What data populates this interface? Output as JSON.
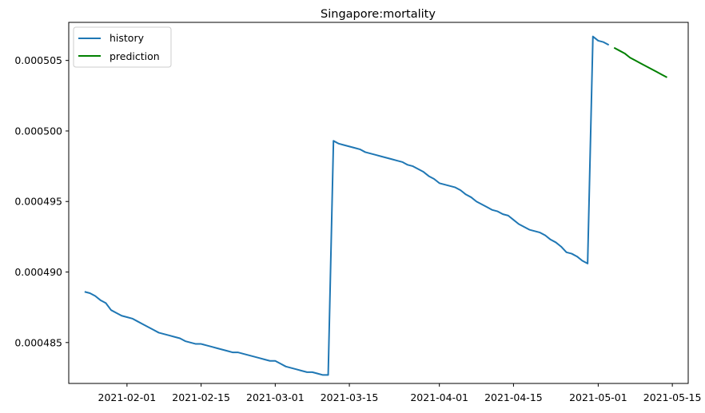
{
  "chart_data": {
    "type": "line",
    "title": "Singapore:mortality",
    "xlabel": "",
    "ylabel": "",
    "xlim": [
      "2021-01-21",
      "2021-05-18"
    ],
    "ylim": [
      0.0004821,
      0.0005077
    ],
    "grid": false,
    "legend_position": "top-left",
    "x_ticks": [
      "2021-02-01",
      "2021-02-15",
      "2021-03-01",
      "2021-03-15",
      "2021-04-01",
      "2021-04-15",
      "2021-05-01",
      "2021-05-15"
    ],
    "y_ticks": [
      0.000485,
      0.00049,
      0.000495,
      0.0005,
      0.000505
    ],
    "y_tick_labels": [
      "0.000485",
      "0.000490",
      "0.000495",
      "0.000500",
      "0.000505"
    ],
    "series": [
      {
        "name": "history",
        "color": "#1f77b4",
        "points": [
          [
            "2021-01-24",
            0.0004886
          ],
          [
            "2021-01-25",
            0.0004885
          ],
          [
            "2021-01-26",
            0.0004883
          ],
          [
            "2021-01-27",
            0.000488
          ],
          [
            "2021-01-28",
            0.0004878
          ],
          [
            "2021-01-29",
            0.0004873
          ],
          [
            "2021-01-30",
            0.0004871
          ],
          [
            "2021-01-31",
            0.0004869
          ],
          [
            "2021-02-01",
            0.0004868
          ],
          [
            "2021-02-02",
            0.0004867
          ],
          [
            "2021-02-03",
            0.0004865
          ],
          [
            "2021-02-04",
            0.0004863
          ],
          [
            "2021-02-05",
            0.0004861
          ],
          [
            "2021-02-06",
            0.0004859
          ],
          [
            "2021-02-07",
            0.0004857
          ],
          [
            "2021-02-08",
            0.0004856
          ],
          [
            "2021-02-09",
            0.0004855
          ],
          [
            "2021-02-10",
            0.0004854
          ],
          [
            "2021-02-11",
            0.0004853
          ],
          [
            "2021-02-12",
            0.0004851
          ],
          [
            "2021-02-13",
            0.000485
          ],
          [
            "2021-02-14",
            0.0004849
          ],
          [
            "2021-02-15",
            0.0004849
          ],
          [
            "2021-02-16",
            0.0004848
          ],
          [
            "2021-02-17",
            0.0004847
          ],
          [
            "2021-02-18",
            0.0004846
          ],
          [
            "2021-02-19",
            0.0004845
          ],
          [
            "2021-02-20",
            0.0004844
          ],
          [
            "2021-02-21",
            0.0004843
          ],
          [
            "2021-02-22",
            0.0004843
          ],
          [
            "2021-02-23",
            0.0004842
          ],
          [
            "2021-02-24",
            0.0004841
          ],
          [
            "2021-02-25",
            0.000484
          ],
          [
            "2021-02-26",
            0.0004839
          ],
          [
            "2021-02-27",
            0.0004838
          ],
          [
            "2021-02-28",
            0.0004837
          ],
          [
            "2021-03-01",
            0.0004837
          ],
          [
            "2021-03-02",
            0.0004835
          ],
          [
            "2021-03-03",
            0.0004833
          ],
          [
            "2021-03-04",
            0.0004832
          ],
          [
            "2021-03-05",
            0.0004831
          ],
          [
            "2021-03-06",
            0.000483
          ],
          [
            "2021-03-07",
            0.0004829
          ],
          [
            "2021-03-08",
            0.0004829
          ],
          [
            "2021-03-09",
            0.0004828
          ],
          [
            "2021-03-10",
            0.0004827
          ],
          [
            "2021-03-11",
            0.0004827
          ],
          [
            "2021-03-12",
            0.0004993
          ],
          [
            "2021-03-13",
            0.0004991
          ],
          [
            "2021-03-14",
            0.000499
          ],
          [
            "2021-03-15",
            0.0004989
          ],
          [
            "2021-03-16",
            0.0004988
          ],
          [
            "2021-03-17",
            0.0004987
          ],
          [
            "2021-03-18",
            0.0004985
          ],
          [
            "2021-03-19",
            0.0004984
          ],
          [
            "2021-03-20",
            0.0004983
          ],
          [
            "2021-03-21",
            0.0004982
          ],
          [
            "2021-03-22",
            0.0004981
          ],
          [
            "2021-03-23",
            0.000498
          ],
          [
            "2021-03-24",
            0.0004979
          ],
          [
            "2021-03-25",
            0.0004978
          ],
          [
            "2021-03-26",
            0.0004976
          ],
          [
            "2021-03-27",
            0.0004975
          ],
          [
            "2021-03-28",
            0.0004973
          ],
          [
            "2021-03-29",
            0.0004971
          ],
          [
            "2021-03-30",
            0.0004968
          ],
          [
            "2021-03-31",
            0.0004966
          ],
          [
            "2021-04-01",
            0.0004963
          ],
          [
            "2021-04-02",
            0.0004962
          ],
          [
            "2021-04-03",
            0.0004961
          ],
          [
            "2021-04-04",
            0.000496
          ],
          [
            "2021-04-05",
            0.0004958
          ],
          [
            "2021-04-06",
            0.0004955
          ],
          [
            "2021-04-07",
            0.0004953
          ],
          [
            "2021-04-08",
            0.000495
          ],
          [
            "2021-04-09",
            0.0004948
          ],
          [
            "2021-04-10",
            0.0004946
          ],
          [
            "2021-04-11",
            0.0004944
          ],
          [
            "2021-04-12",
            0.0004943
          ],
          [
            "2021-04-13",
            0.0004941
          ],
          [
            "2021-04-14",
            0.000494
          ],
          [
            "2021-04-15",
            0.0004937
          ],
          [
            "2021-04-16",
            0.0004934
          ],
          [
            "2021-04-17",
            0.0004932
          ],
          [
            "2021-04-18",
            0.000493
          ],
          [
            "2021-04-19",
            0.0004929
          ],
          [
            "2021-04-20",
            0.0004928
          ],
          [
            "2021-04-21",
            0.0004926
          ],
          [
            "2021-04-22",
            0.0004923
          ],
          [
            "2021-04-23",
            0.0004921
          ],
          [
            "2021-04-24",
            0.0004918
          ],
          [
            "2021-04-25",
            0.0004914
          ],
          [
            "2021-04-26",
            0.0004913
          ],
          [
            "2021-04-27",
            0.0004911
          ],
          [
            "2021-04-28",
            0.0004908
          ],
          [
            "2021-04-29",
            0.0004906
          ],
          [
            "2021-04-30",
            0.0005067
          ],
          [
            "2021-05-01",
            0.0005064
          ],
          [
            "2021-05-02",
            0.0005063
          ],
          [
            "2021-05-03",
            0.0005061
          ]
        ]
      },
      {
        "name": "prediction",
        "color": "#008000",
        "points": [
          [
            "2021-05-04",
            0.0005059
          ],
          [
            "2021-05-05",
            0.0005057
          ],
          [
            "2021-05-06",
            0.0005055
          ],
          [
            "2021-05-07",
            0.0005052
          ],
          [
            "2021-05-08",
            0.000505
          ],
          [
            "2021-05-09",
            0.0005048
          ],
          [
            "2021-05-10",
            0.0005046
          ],
          [
            "2021-05-11",
            0.0005044
          ],
          [
            "2021-05-12",
            0.0005042
          ],
          [
            "2021-05-13",
            0.000504
          ],
          [
            "2021-05-14",
            0.0005038
          ]
        ]
      }
    ]
  }
}
